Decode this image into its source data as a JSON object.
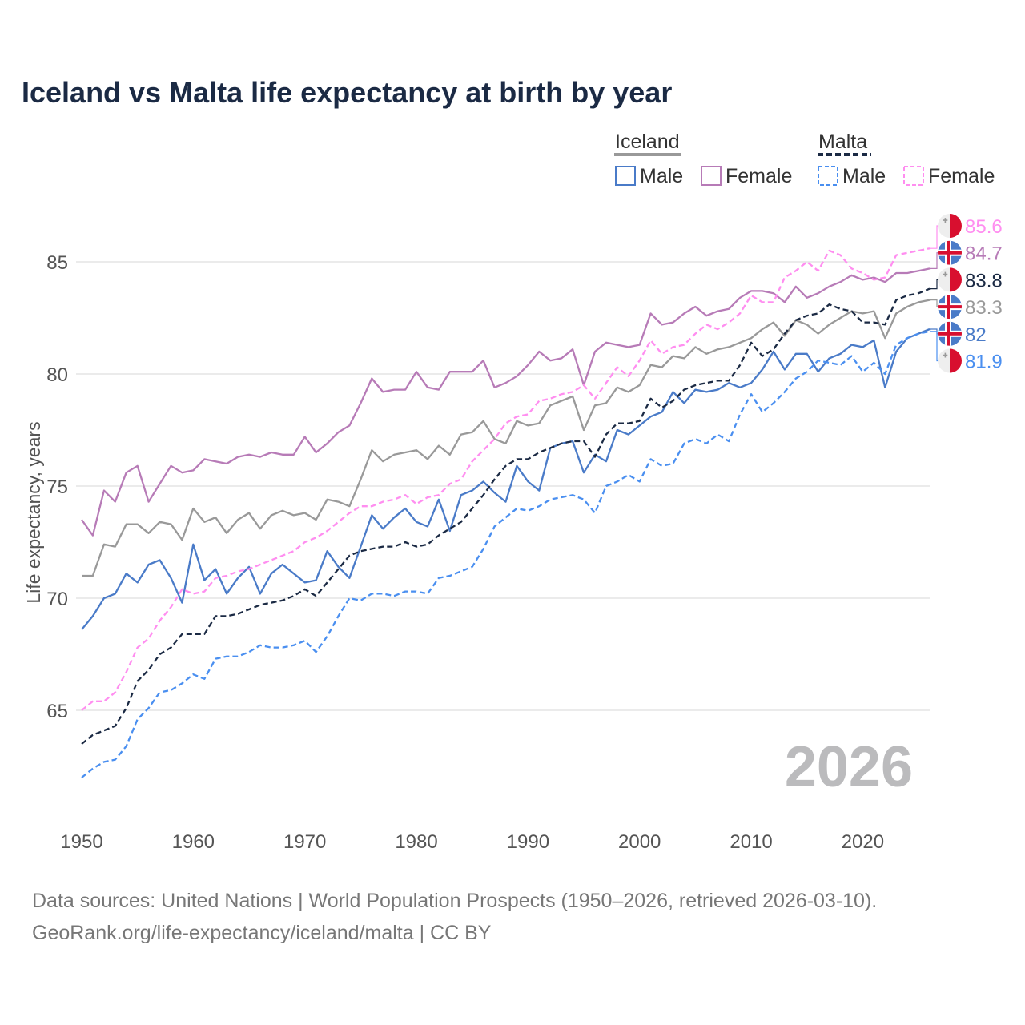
{
  "title": "Iceland vs Malta life expectancy at birth by year",
  "footer": {
    "line1": "Data sources: United Nations | World Population Prospects (1950–2026, retrieved 2026-03-10).",
    "line2": "GeoRank.org/life-expectancy/iceland/malta | CC BY"
  },
  "legend": {
    "iceland": "Iceland",
    "malta": "Malta",
    "male": "Male",
    "female": "Female"
  },
  "year_watermark": "2026",
  "chart_data": {
    "type": "line",
    "title": "Iceland vs Malta life expectancy at birth by year",
    "xlabel": "",
    "ylabel": "Life expectancy, years",
    "xlim": [
      1950,
      2026
    ],
    "ylim": [
      61,
      87.3
    ],
    "xticks": [
      1950,
      1960,
      1970,
      1980,
      1990,
      2000,
      2010,
      2020
    ],
    "yticks": [
      65,
      70,
      75,
      80,
      85
    ],
    "grid": true,
    "legend_position": "top-right",
    "x_start": 1950,
    "series": [
      {
        "name": "Iceland Female",
        "country": "Iceland",
        "color": "#b77bb7",
        "dashed": false,
        "last_label": "84.7",
        "values": [
          73.5,
          72.8,
          74.8,
          74.3,
          75.6,
          75.9,
          74.3,
          75.1,
          75.9,
          75.6,
          75.7,
          76.2,
          76.1,
          76.0,
          76.3,
          76.4,
          76.3,
          76.5,
          76.4,
          76.4,
          77.2,
          76.5,
          76.9,
          77.4,
          77.7,
          78.7,
          79.8,
          79.2,
          79.3,
          79.3,
          80.1,
          79.4,
          79.3,
          80.1,
          80.1,
          80.1,
          80.6,
          79.4,
          79.6,
          79.9,
          80.4,
          81.0,
          80.6,
          80.7,
          81.1,
          79.5,
          81.0,
          81.4,
          81.3,
          81.2,
          81.3,
          82.7,
          82.2,
          82.3,
          82.7,
          83.0,
          82.6,
          82.8,
          82.9,
          83.4,
          83.7,
          83.7,
          83.6,
          83.2,
          83.9,
          83.4,
          83.6,
          83.9,
          84.1,
          84.4,
          84.2,
          84.3,
          84.1,
          84.5,
          84.5,
          84.6,
          84.7
        ]
      },
      {
        "name": "Iceland",
        "country": "Iceland",
        "color": "#999999",
        "dashed": false,
        "last_label": "83.3",
        "values": [
          71.0,
          71.0,
          72.4,
          72.3,
          73.3,
          73.3,
          72.9,
          73.4,
          73.3,
          72.6,
          74.0,
          73.4,
          73.6,
          72.9,
          73.5,
          73.8,
          73.1,
          73.7,
          73.9,
          73.7,
          73.8,
          73.5,
          74.4,
          74.3,
          74.1,
          75.3,
          76.6,
          76.1,
          76.4,
          76.5,
          76.6,
          76.2,
          76.8,
          76.4,
          77.3,
          77.4,
          77.9,
          77.1,
          76.9,
          77.9,
          77.7,
          77.8,
          78.6,
          78.8,
          79.0,
          77.5,
          78.6,
          78.7,
          79.4,
          79.2,
          79.5,
          80.4,
          80.3,
          80.8,
          80.7,
          81.2,
          80.9,
          81.1,
          81.2,
          81.4,
          81.6,
          82.0,
          82.3,
          81.7,
          82.4,
          82.2,
          81.8,
          82.2,
          82.5,
          82.8,
          82.7,
          82.8,
          81.6,
          82.7,
          83.0,
          83.2,
          83.3
        ]
      },
      {
        "name": "Iceland Male",
        "country": "Iceland",
        "color": "#4a7bc8",
        "dashed": false,
        "last_label": "82",
        "values": [
          68.6,
          69.2,
          70.0,
          70.2,
          71.1,
          70.7,
          71.5,
          71.7,
          70.9,
          69.8,
          72.4,
          70.8,
          71.3,
          70.2,
          70.9,
          71.4,
          70.2,
          71.1,
          71.5,
          71.1,
          70.7,
          70.8,
          72.1,
          71.4,
          70.9,
          72.3,
          73.7,
          73.1,
          73.6,
          74.0,
          73.4,
          73.2,
          74.4,
          73.0,
          74.6,
          74.8,
          75.2,
          74.7,
          74.3,
          75.9,
          75.2,
          74.8,
          76.7,
          76.9,
          77.0,
          75.6,
          76.4,
          76.1,
          77.5,
          77.3,
          77.7,
          78.1,
          78.3,
          79.2,
          78.7,
          79.3,
          79.2,
          79.3,
          79.6,
          79.4,
          79.6,
          80.2,
          81.0,
          80.2,
          80.9,
          80.9,
          80.1,
          80.7,
          80.9,
          81.3,
          81.2,
          81.5,
          79.4,
          81.0,
          81.6,
          81.8,
          82.0
        ]
      },
      {
        "name": "Malta Female",
        "country": "Malta",
        "color": "#ff8ef0",
        "dashed": true,
        "last_label": "85.6",
        "values": [
          65.0,
          65.4,
          65.4,
          65.8,
          66.7,
          67.8,
          68.2,
          69.0,
          69.6,
          70.4,
          70.2,
          70.3,
          70.9,
          71.0,
          71.2,
          71.3,
          71.5,
          71.7,
          71.9,
          72.1,
          72.5,
          72.7,
          73.0,
          73.4,
          73.8,
          74.1,
          74.1,
          74.3,
          74.4,
          74.6,
          74.2,
          74.5,
          74.6,
          75.1,
          75.3,
          76.1,
          76.6,
          77.1,
          77.8,
          78.1,
          78.2,
          78.8,
          78.9,
          79.1,
          79.2,
          79.5,
          78.9,
          79.6,
          80.3,
          79.9,
          80.6,
          81.5,
          80.9,
          81.2,
          81.3,
          81.8,
          82.2,
          82.0,
          82.3,
          82.7,
          83.5,
          83.2,
          83.2,
          84.3,
          84.6,
          85.0,
          84.6,
          85.5,
          85.3,
          84.7,
          84.5,
          84.2,
          84.3,
          85.3,
          85.4,
          85.5,
          85.6
        ]
      },
      {
        "name": "Malta",
        "country": "Malta",
        "color": "#1b2a44",
        "dashed": true,
        "last_label": "83.8",
        "values": [
          63.5,
          63.9,
          64.1,
          64.3,
          65.1,
          66.3,
          66.8,
          67.5,
          67.8,
          68.4,
          68.4,
          68.4,
          69.2,
          69.2,
          69.3,
          69.5,
          69.7,
          69.8,
          69.9,
          70.1,
          70.4,
          70.1,
          70.7,
          71.3,
          71.9,
          72.1,
          72.2,
          72.3,
          72.3,
          72.5,
          72.3,
          72.4,
          72.8,
          73.1,
          73.4,
          74.0,
          74.6,
          75.3,
          75.9,
          76.2,
          76.2,
          76.5,
          76.7,
          76.9,
          77.0,
          77.0,
          76.3,
          77.3,
          77.8,
          77.8,
          77.9,
          78.9,
          78.5,
          78.8,
          79.3,
          79.5,
          79.6,
          79.7,
          79.7,
          80.4,
          81.4,
          80.8,
          81.1,
          81.8,
          82.4,
          82.6,
          82.7,
          83.1,
          82.9,
          82.8,
          82.3,
          82.3,
          82.2,
          83.3,
          83.5,
          83.6,
          83.8
        ]
      },
      {
        "name": "Malta Male",
        "country": "Malta",
        "color": "#4a8ff0",
        "dashed": true,
        "last_label": "81.9",
        "values": [
          62.0,
          62.4,
          62.7,
          62.8,
          63.4,
          64.6,
          65.1,
          65.8,
          65.9,
          66.2,
          66.6,
          66.4,
          67.3,
          67.4,
          67.4,
          67.6,
          67.9,
          67.8,
          67.8,
          67.9,
          68.1,
          67.6,
          68.3,
          69.2,
          70.0,
          69.9,
          70.2,
          70.2,
          70.1,
          70.3,
          70.3,
          70.2,
          70.9,
          71.0,
          71.2,
          71.4,
          72.2,
          73.2,
          73.6,
          74.0,
          73.9,
          74.1,
          74.4,
          74.5,
          74.6,
          74.4,
          73.8,
          75.0,
          75.2,
          75.5,
          75.2,
          76.2,
          75.9,
          76.0,
          76.9,
          77.1,
          76.9,
          77.3,
          77.0,
          78.2,
          79.1,
          78.3,
          78.7,
          79.2,
          79.8,
          80.1,
          80.6,
          80.5,
          80.4,
          80.8,
          80.1,
          80.5,
          80.0,
          81.3,
          81.6,
          81.8,
          81.9
        ]
      }
    ]
  }
}
